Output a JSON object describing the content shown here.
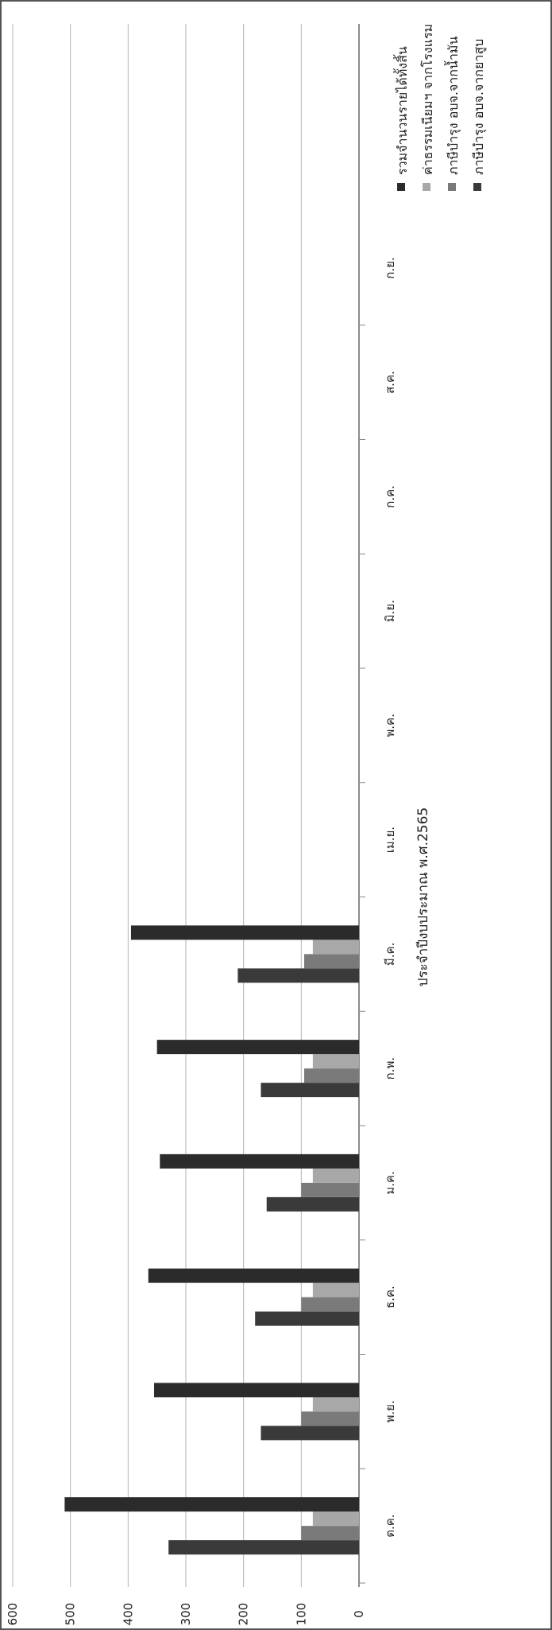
{
  "chart_data": {
    "type": "bar",
    "orientation": "rotated-90-ccw",
    "xlabel": "ประจำปีงบประมาณ พ.ศ.2565",
    "ylabel": "",
    "ylim": [
      0,
      600
    ],
    "yticks": [
      0,
      100,
      200,
      300,
      400,
      500,
      600
    ],
    "grid": true,
    "legend_position": "right",
    "categories": [
      "ต.ค.",
      "พ.ย.",
      "ธ.ค.",
      "ม.ค.",
      "ก.พ.",
      "มี.ค.",
      "เม.ย.",
      "พ.ค.",
      "มิ.ย.",
      "ก.ค.",
      "ส.ค.",
      "ก.ย."
    ],
    "series": [
      {
        "name": "ภาษีบำรุง อบจ.จากยาสูบ",
        "color": "#3a3a3a",
        "values": [
          330,
          170,
          180,
          160,
          170,
          210,
          null,
          null,
          null,
          null,
          null,
          null
        ]
      },
      {
        "name": "ภาษีบำรุง อบจ.จากน้ำมัน",
        "color": "#7a7a7a",
        "values": [
          100,
          100,
          100,
          100,
          95,
          95,
          null,
          null,
          null,
          null,
          null,
          null
        ]
      },
      {
        "name": "ค่าธรรมเนียมฯ จากโรงแรม",
        "color": "#a8a8a8",
        "values": [
          80,
          80,
          80,
          80,
          80,
          80,
          null,
          null,
          null,
          null,
          null,
          null
        ]
      },
      {
        "name": "รวมจำนวนรายได้ทั้งสิ้น",
        "color": "#2b2b2b",
        "values": [
          510,
          355,
          365,
          345,
          350,
          395,
          null,
          null,
          null,
          null,
          null,
          null
        ]
      }
    ]
  }
}
